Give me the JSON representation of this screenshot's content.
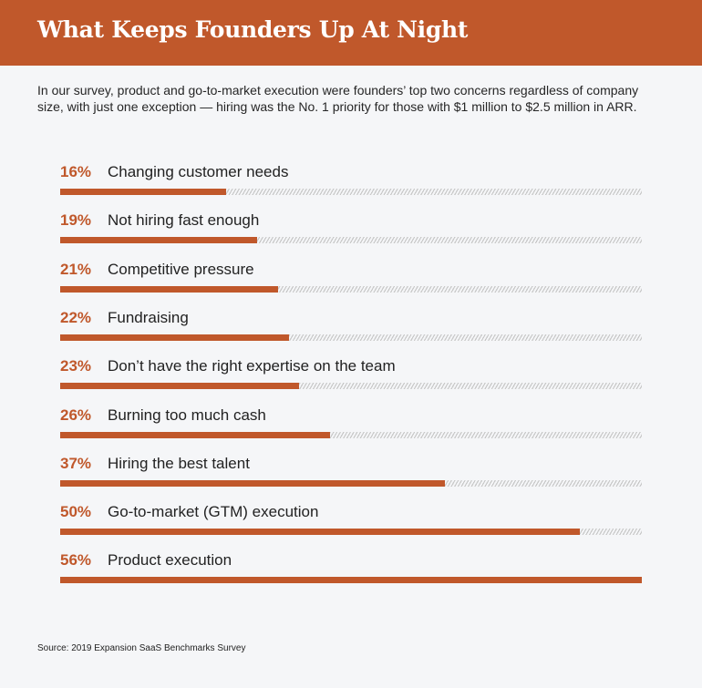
{
  "header": {
    "title": "What Keeps Founders Up At Night"
  },
  "subtitle": "In our survey, product and go-to-market execution were founders’ top two concerns regardless of company size, with just one exception — hiring was the No. 1 priority for those with $1 million to $2.5 million in ARR.",
  "source": "Source: 2019 Expansion SaaS Benchmarks Survey",
  "colors": {
    "accent": "#c0582b",
    "background": "#f5f6f8",
    "track_hatch": "#c8c8c8"
  },
  "chart_data": {
    "type": "bar",
    "orientation": "horizontal",
    "title": "What Keeps Founders Up At Night",
    "categories": [
      "Changing customer needs",
      "Not hiring fast enough",
      "Competitive pressure",
      "Fundraising",
      "Don’t have the right expertise on the team",
      "Burning too much cash",
      "Hiring the best talent",
      "Go-to-market (GTM) execution",
      "Product execution"
    ],
    "values": [
      16,
      19,
      21,
      22,
      23,
      26,
      37,
      50,
      56
    ],
    "value_labels": [
      "16%",
      "19%",
      "21%",
      "22%",
      "23%",
      "26%",
      "37%",
      "50%",
      "56%"
    ],
    "unit": "%",
    "xlim": [
      0,
      56
    ],
    "grid": false,
    "legend": "none"
  }
}
